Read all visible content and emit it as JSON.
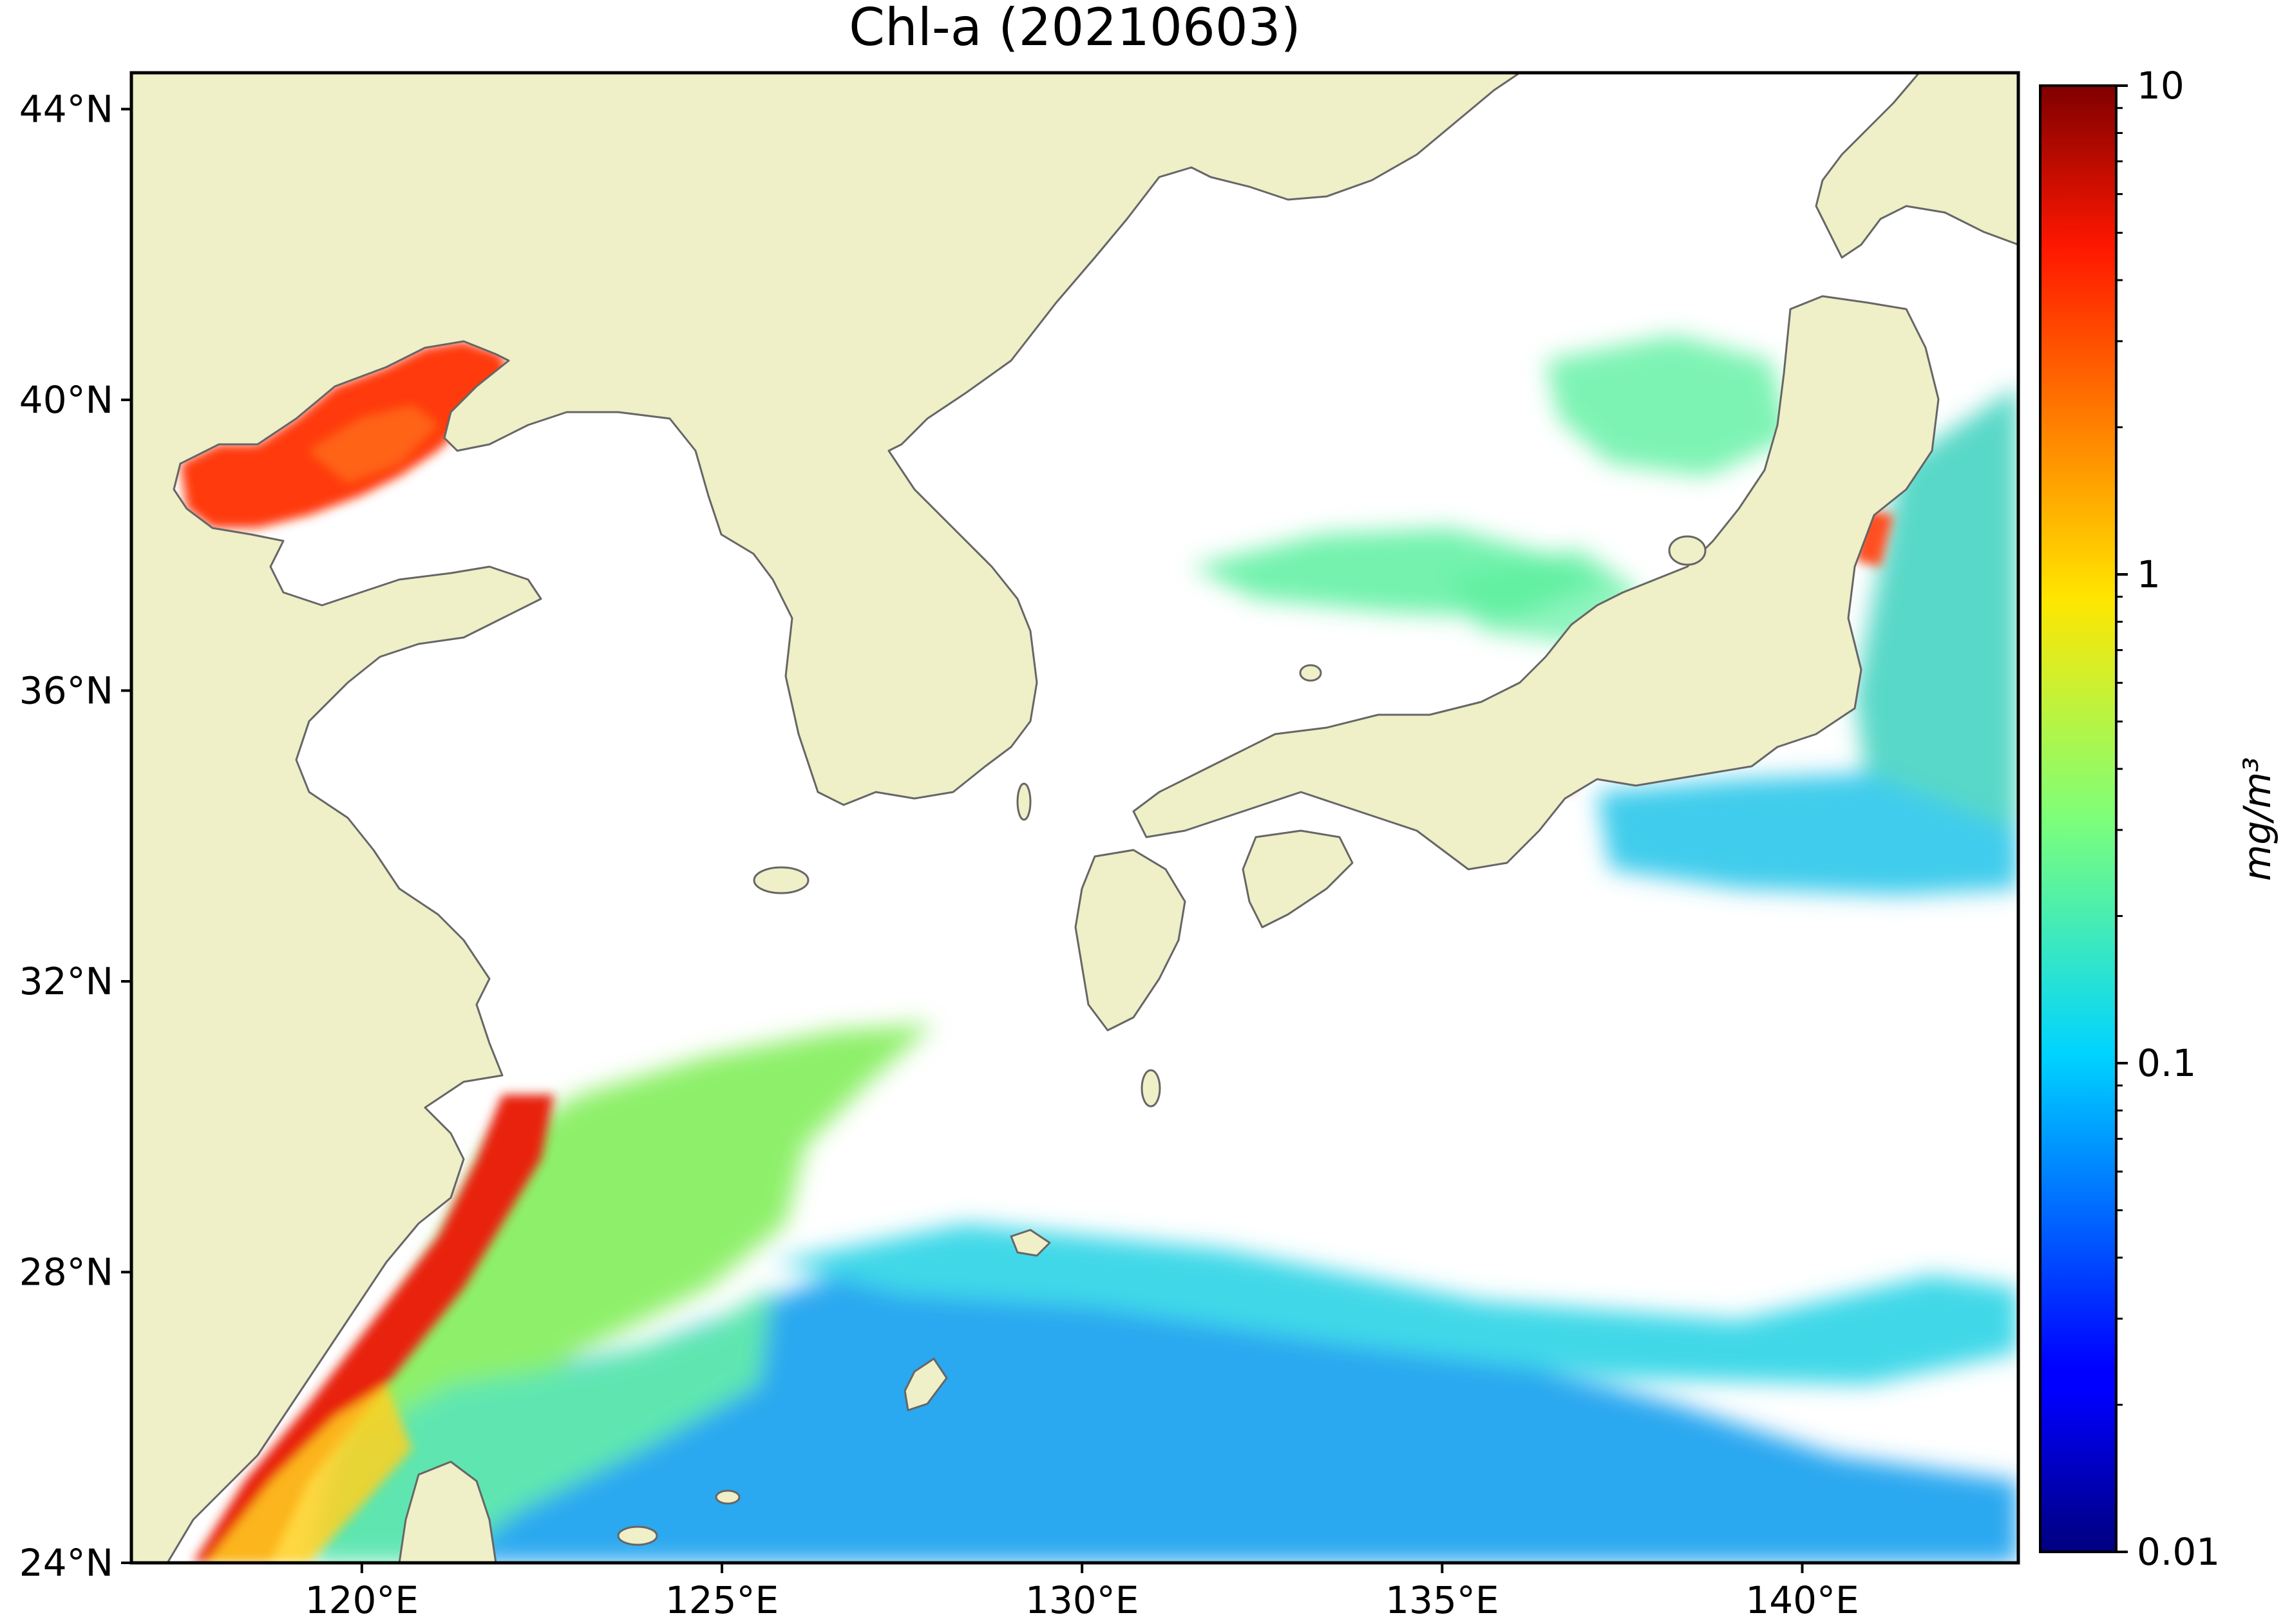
{
  "map": {
    "title": "Chl-a (20210603)",
    "extent": {
      "lon_min": 116.8,
      "lon_max": 143.0,
      "lat_min": 24.0,
      "lat_max": 44.5
    },
    "lat_ticks": [
      {
        "value": 44,
        "label": "44°N"
      },
      {
        "value": 40,
        "label": "40°N"
      },
      {
        "value": 36,
        "label": "36°N"
      },
      {
        "value": 32,
        "label": "32°N"
      },
      {
        "value": 28,
        "label": "28°N"
      },
      {
        "value": 24,
        "label": "24°N"
      }
    ],
    "lon_ticks": [
      {
        "value": 120,
        "label": "120°E"
      },
      {
        "value": 125,
        "label": "125°E"
      },
      {
        "value": 130,
        "label": "130°E"
      },
      {
        "value": 135,
        "label": "135°E"
      },
      {
        "value": 140,
        "label": "140°E"
      }
    ],
    "colors": {
      "land": "#efefc8",
      "coastline": "#666666",
      "no_data": "#ffffff"
    }
  },
  "colorbar": {
    "label": "mg/m³",
    "scale": "log",
    "colormap": "jet",
    "range": [
      0.01,
      10
    ],
    "ticks": [
      {
        "value": 10,
        "label": "10"
      },
      {
        "value": 1,
        "label": "1"
      },
      {
        "value": 0.1,
        "label": "0.1"
      },
      {
        "value": 0.01,
        "label": "0.01"
      }
    ]
  }
}
